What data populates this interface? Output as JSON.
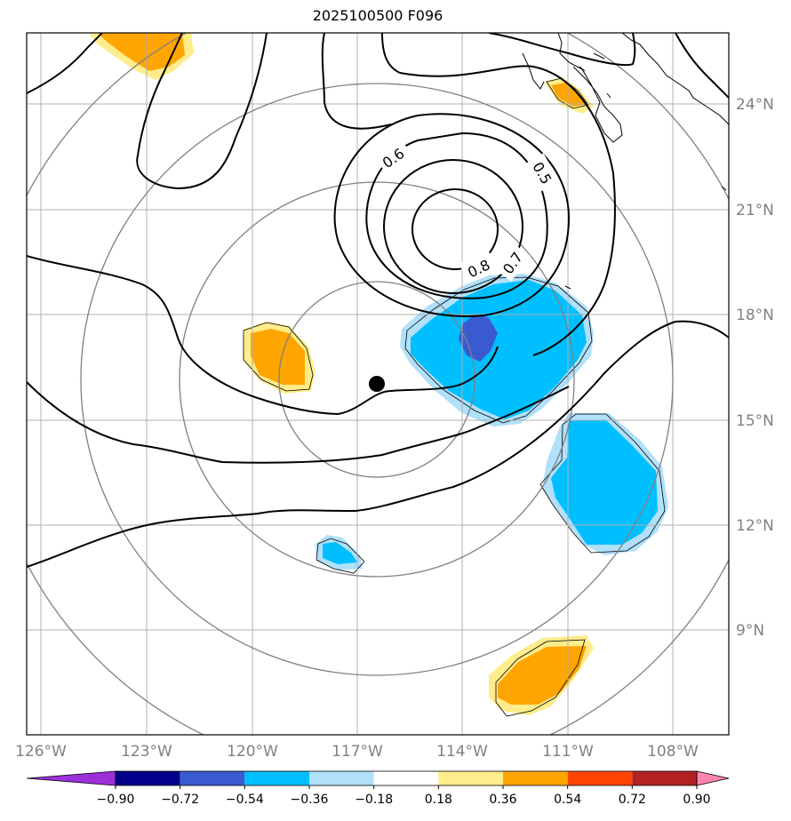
{
  "title": "2025100500 F096",
  "lat_labels": [
    "24°N",
    "21°N",
    "18°N",
    "15°N",
    "12°N",
    "9°N"
  ],
  "lon_labels": [
    "126°W",
    "123°W",
    "120°W",
    "117°W",
    "114°W",
    "111°W",
    "108°W"
  ],
  "contour_labels": [
    "0.6",
    "0.5",
    "0.8",
    "0.7"
  ],
  "colorbar": {
    "labels": [
      "−0.90",
      "−0.72",
      "−0.54",
      "−0.36",
      "−0.18",
      "0.18",
      "0.36",
      "0.54",
      "0.72",
      "0.90"
    ],
    "colors": [
      "#9b30d9",
      "#00008b",
      "#3a5bd0",
      "#00bfff",
      "#b0e0fa",
      "#ffffff",
      "#ffec8b",
      "#ffa500",
      "#ff4500",
      "#b22222",
      "#ff85b0"
    ]
  },
  "colors": {
    "light_blue": "#b0e0fa",
    "blue": "#00bfff",
    "royal_blue": "#3a5bd0",
    "light_yellow": "#ffec8b",
    "orange": "#ffa500",
    "grid": "#b0b0b0",
    "range_ring": "#808080"
  },
  "storm_center": {
    "lon": -116.5,
    "lat": 16.0
  }
}
